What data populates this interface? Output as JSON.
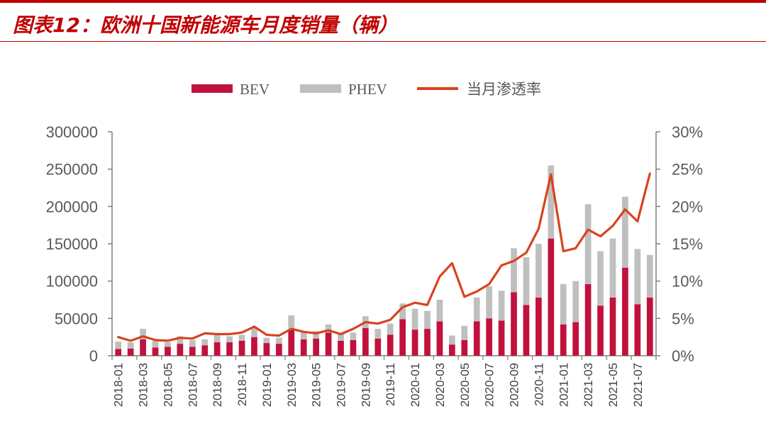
{
  "title": "图表12：欧洲十国新能源车月度销量（辆）",
  "colors": {
    "bev": "#C0123C",
    "phev": "#BFBFBF",
    "penetration": "#D9421E",
    "accent": "#C00000"
  },
  "chart_data": {
    "type": "bar",
    "stacked": true,
    "title": "",
    "legend": [
      "BEV",
      "PHEV",
      "当月渗透率"
    ],
    "legend_position": "top",
    "categories": [
      "2018-01",
      "2018-02",
      "2018-03",
      "2018-04",
      "2018-05",
      "2018-06",
      "2018-07",
      "2018-08",
      "2018-09",
      "2018-10",
      "2018-11",
      "2018-12",
      "2019-01",
      "2019-02",
      "2019-03",
      "2019-04",
      "2019-05",
      "2019-06",
      "2019-07",
      "2019-08",
      "2019-09",
      "2019-10",
      "2019-11",
      "2019-12",
      "2020-01",
      "2020-02",
      "2020-03",
      "2020-04",
      "2020-05",
      "2020-06",
      "2020-07",
      "2020-08",
      "2020-09",
      "2020-10",
      "2020-11",
      "2020-12",
      "2021-01",
      "2021-02",
      "2021-03",
      "2021-04",
      "2021-05",
      "2021-06",
      "2021-07",
      "2021-08"
    ],
    "x_tick_labels": [
      "2018-01",
      "2018-03",
      "2018-05",
      "2018-07",
      "2018-09",
      "2018-11",
      "2019-01",
      "2019-03",
      "2019-05",
      "2019-07",
      "2019-09",
      "2019-11",
      "2020-01",
      "2020-03",
      "2020-05",
      "2020-07",
      "2020-09",
      "2020-11",
      "2021-01",
      "2021-03",
      "2021-05",
      "2021-07"
    ],
    "series": [
      {
        "name": "BEV",
        "axis": "left",
        "values": [
          9000,
          9500,
          22000,
          11000,
          12000,
          16000,
          12000,
          14000,
          18000,
          18000,
          20000,
          25000,
          17000,
          16000,
          35000,
          22000,
          23000,
          31000,
          20000,
          21000,
          37000,
          23000,
          28000,
          49000,
          35000,
          36000,
          46000,
          15000,
          21000,
          46000,
          50000,
          47000,
          85000,
          68000,
          78000,
          157000,
          42000,
          45000,
          96000,
          67000,
          78000,
          118000,
          69000,
          78000
        ]
      },
      {
        "name": "PHEV",
        "axis": "left",
        "values": [
          10000,
          8500,
          14000,
          9000,
          6000,
          10000,
          9000,
          8000,
          11000,
          8000,
          8000,
          12000,
          7000,
          8000,
          19000,
          9000,
          10000,
          11000,
          10000,
          10000,
          16000,
          13000,
          15000,
          21000,
          28000,
          24000,
          29000,
          12000,
          19000,
          32000,
          43000,
          40000,
          59000,
          64000,
          72000,
          98000,
          54000,
          55000,
          107000,
          73000,
          79000,
          95000,
          74000,
          57000
        ]
      },
      {
        "name": "当月渗透率",
        "type": "line",
        "axis": "right",
        "values": [
          2.5,
          2.0,
          2.6,
          2.1,
          2.0,
          2.4,
          2.3,
          3.0,
          2.9,
          2.9,
          3.1,
          3.9,
          2.8,
          2.7,
          3.6,
          3.2,
          3.0,
          3.4,
          2.9,
          3.6,
          4.5,
          4.3,
          4.8,
          6.5,
          7.1,
          6.8,
          10.6,
          12.4,
          7.9,
          8.6,
          9.6,
          12.1,
          12.7,
          13.8,
          17.0,
          24.3,
          14.0,
          14.4,
          16.9,
          16.0,
          17.4,
          19.6,
          18.0,
          24.4
        ]
      }
    ],
    "y_left": {
      "min": 0,
      "max": 300000,
      "step": 50000,
      "tick_labels": [
        "0",
        "50000",
        "100000",
        "150000",
        "200000",
        "250000",
        "300000"
      ]
    },
    "y_right": {
      "min": 0,
      "max": 30,
      "step": 5,
      "unit": "%",
      "tick_labels": [
        "0%",
        "5%",
        "10%",
        "15%",
        "20%",
        "25%",
        "30%"
      ]
    },
    "grid": false
  }
}
